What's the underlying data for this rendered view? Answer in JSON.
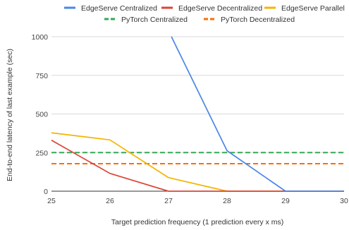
{
  "chart_data": {
    "type": "line",
    "title": "",
    "xlabel": "Target prediction frequency (1 prediction every x ms)",
    "ylabel": "End-to-end latency of last example (sec)",
    "xlim": [
      25,
      30
    ],
    "ylim": [
      0,
      1000
    ],
    "x_ticks": [
      "25",
      "26",
      "27",
      "28",
      "29",
      "30"
    ],
    "y_ticks": [
      "0",
      "250",
      "500",
      "750",
      "1000"
    ],
    "grid": "horizontal",
    "legend_position": "top",
    "series": [
      {
        "name": "EdgeServe Centralized",
        "color": "#4a86e8",
        "style": "solid",
        "points": [
          [
            27.05,
            1000
          ],
          [
            28,
            262
          ],
          [
            29,
            0
          ],
          [
            30,
            0
          ]
        ]
      },
      {
        "name": "EdgeServe Decentralized",
        "color": "#db4437",
        "style": "solid",
        "points": [
          [
            25,
            330
          ],
          [
            26,
            115
          ],
          [
            27,
            0
          ],
          [
            28,
            0
          ],
          [
            29,
            0
          ],
          [
            30,
            0
          ]
        ]
      },
      {
        "name": "EdgeServe Parallel",
        "color": "#f4b400",
        "style": "solid",
        "points": [
          [
            25,
            378
          ],
          [
            26,
            332
          ],
          [
            27,
            88
          ],
          [
            28,
            0
          ],
          [
            29,
            0
          ],
          [
            30,
            0
          ]
        ]
      },
      {
        "name": "PyTorch Centralized",
        "color": "#34a853",
        "style": "dashed",
        "points": [
          [
            25,
            250
          ],
          [
            30,
            250
          ]
        ]
      },
      {
        "name": "PyTorch Decentralized",
        "color": "#ff6d01",
        "style": "dashed",
        "points": [
          [
            25,
            178
          ],
          [
            30,
            178
          ]
        ]
      }
    ]
  }
}
